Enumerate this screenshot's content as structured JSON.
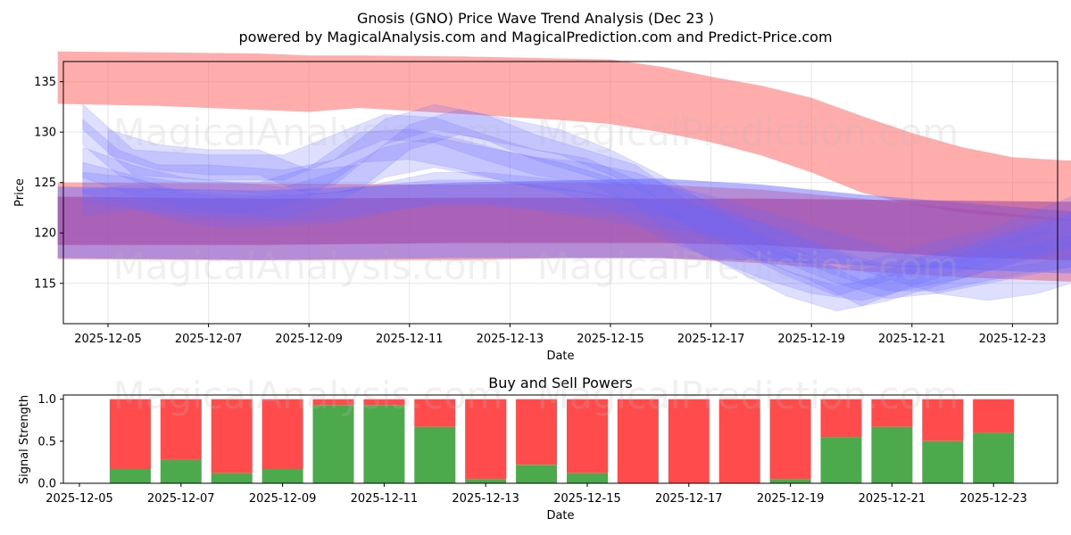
{
  "title": "Gnosis (GNO) Price Wave Trend Analysis (Dec 23 )",
  "subtitle": "powered by MagicalAnalysis.com and MagicalPrediction.com and Predict-Price.com",
  "watermarks": [
    "MagicalAnalysis.com",
    "MagicalPrediction.com"
  ],
  "colors": {
    "red_band": "#ff5a5a",
    "blue_band": "#6b6bff",
    "purple_band": "#a040a0",
    "buy": "#4caa4c",
    "sell": "#ff4b4b"
  },
  "chart_data": [
    {
      "type": "area",
      "name": "price-wave-chart",
      "xlabel": "Date",
      "ylabel": "Price",
      "xlim": [
        "2025-12-04",
        "2025-12-24"
      ],
      "ylim": [
        111,
        137
      ],
      "x_tick_labels": [
        "2025-12-05",
        "2025-12-07",
        "2025-12-09",
        "2025-12-11",
        "2025-12-13",
        "2025-12-15",
        "2025-12-17",
        "2025-12-19",
        "2025-12-21",
        "2025-12-23"
      ],
      "y_ticks": [
        115,
        120,
        125,
        130,
        135
      ],
      "grid": true,
      "bands": [
        {
          "name": "red-upper-band",
          "color": "red",
          "x": [
            0,
            2,
            4,
            5,
            6,
            8,
            10,
            11,
            12,
            13,
            14,
            15,
            16,
            17,
            18,
            19,
            20,
            21,
            22,
            23.5
          ],
          "lower": [
            132.8,
            132.6,
            132.2,
            132.0,
            132.4,
            131.8,
            131.2,
            130.8,
            130.0,
            129.0,
            127.7,
            126.0,
            124.0,
            122.8,
            122.0,
            121.6,
            121.2,
            121.0,
            120.8,
            120.6
          ],
          "upper": [
            138.0,
            137.9,
            137.8,
            137.6,
            137.6,
            137.5,
            137.3,
            137.2,
            136.5,
            135.5,
            134.6,
            133.4,
            131.6,
            129.9,
            128.5,
            127.5,
            127.2,
            127.1,
            127.0,
            127.0
          ]
        },
        {
          "name": "red-lower-band",
          "color": "red",
          "x": [
            0,
            4,
            8,
            10,
            12,
            14,
            16,
            18,
            20,
            22,
            23.5
          ],
          "lower": [
            117.4,
            117.3,
            117.3,
            117.5,
            117.5,
            117.0,
            116.2,
            115.6,
            115.2,
            114.8,
            114.4
          ],
          "upper": [
            125.0,
            124.9,
            124.8,
            125.0,
            124.8,
            124.3,
            123.4,
            122.4,
            121.4,
            120.8,
            120.5
          ]
        },
        {
          "name": "blue-lower-band",
          "color": "blue",
          "x": [
            0,
            4,
            8,
            10,
            12,
            14,
            16,
            18,
            20,
            22,
            23.5
          ],
          "lower": [
            117.5,
            117.3,
            117.5,
            117.5,
            117.5,
            117.2,
            116.8,
            116.4,
            116.0,
            115.8,
            115.5
          ],
          "upper": [
            124.6,
            124.2,
            125.0,
            125.2,
            125.4,
            124.8,
            123.8,
            123.0,
            122.2,
            121.4,
            120.6
          ]
        },
        {
          "name": "purple-band",
          "color": "purple",
          "x": [
            0,
            4,
            8,
            10,
            12,
            14,
            16,
            18,
            20,
            22,
            23.5
          ],
          "lower": [
            118.8,
            118.8,
            119.0,
            119.0,
            119.0,
            118.8,
            118.2,
            117.6,
            117.3,
            117.1,
            117.1
          ],
          "upper": [
            123.6,
            123.4,
            123.5,
            123.5,
            123.4,
            123.4,
            123.3,
            123.2,
            123.1,
            123.1,
            123.1
          ]
        }
      ],
      "waves": [
        {
          "x": [
            0.5,
            1.5,
            2.5,
            4,
            5,
            6,
            7,
            8,
            9,
            10,
            11,
            12,
            13,
            14,
            15,
            16,
            17,
            18,
            19,
            20,
            21,
            22,
            23
          ],
          "y": [
            125.5,
            124.2,
            123.5,
            123.5,
            125.0,
            128.5,
            128.8,
            127.8,
            126.5,
            125.5,
            124.0,
            121.0,
            119.0,
            117.0,
            115.5,
            114.8,
            116.0,
            117.0,
            118.5,
            120.0,
            121.5,
            122.5,
            120.0
          ],
          "w": 3.0
        },
        {
          "x": [
            0.5,
            1.5,
            3,
            4.5,
            5.5,
            6.5,
            7.5,
            8.5,
            9.5,
            10.5,
            11.5,
            12.5,
            13.5,
            14.5,
            15.5,
            16.5,
            17.5,
            18.5,
            19.5,
            20.5,
            21.5,
            22.5,
            23
          ],
          "y": [
            131.5,
            127.0,
            126.5,
            126.5,
            128.5,
            130.5,
            130.2,
            128.5,
            127.0,
            126.2,
            124.0,
            120.0,
            117.5,
            115.0,
            113.5,
            114.5,
            116.0,
            117.5,
            118.8,
            120.0,
            120.5,
            121.0,
            121.0
          ],
          "w": 2.5
        },
        {
          "x": [
            0.5,
            1.2,
            2.0,
            3.0,
            4.5,
            5.5,
            6.5,
            7.5,
            8.5,
            9.5,
            10.5,
            11.5,
            12.5,
            13.5,
            14.5,
            15.5,
            16.5,
            17.5,
            18.5,
            19.5,
            20.5,
            21.5,
            22.5,
            23.5
          ],
          "y": [
            130.0,
            127.0,
            125.5,
            125.5,
            125.0,
            126.0,
            130.0,
            131.5,
            130.5,
            128.5,
            127.0,
            125.5,
            122.0,
            119.5,
            117.0,
            115.0,
            116.5,
            118.0,
            119.0,
            121.0,
            123.0,
            124.0,
            123.0,
            122.0
          ],
          "w": 2.5
        },
        {
          "x": [
            0.5,
            1.5,
            2.5,
            3.5,
            4.5,
            5.5,
            6.5,
            7.5,
            8.5,
            9.5,
            10.5,
            11.5,
            12.5,
            13.5,
            14.5,
            15.5,
            16.5,
            17.5,
            18.5,
            19.5,
            20.5,
            21.5,
            22.5,
            23.5
          ],
          "y": [
            127.0,
            125.2,
            124.0,
            123.5,
            123.0,
            124.5,
            127.0,
            128.0,
            127.0,
            126.0,
            125.5,
            124.5,
            122.5,
            120.5,
            118.5,
            116.5,
            115.0,
            115.5,
            116.5,
            117.5,
            118.5,
            119.5,
            120.0,
            119.5
          ],
          "w": 3.0
        },
        {
          "x": [
            0.5,
            1.5,
            2.5,
            3.5,
            4.5,
            5.5,
            6.5,
            7.5,
            8.5,
            9.5,
            10.5,
            11.5,
            12.5,
            13.5,
            14.5,
            15.5,
            16.5,
            17.5,
            18.5,
            19.5,
            20.5,
            21.5,
            22.5,
            23.5
          ],
          "y": [
            124.5,
            124.0,
            122.5,
            122.0,
            122.2,
            122.5,
            123.5,
            124.5,
            124.5,
            124.0,
            123.5,
            123.5,
            122.8,
            121.5,
            120.0,
            118.5,
            117.0,
            115.5,
            114.8,
            115.5,
            117.0,
            118.0,
            118.5,
            119.0
          ],
          "w": 3.0
        },
        {
          "x": [
            1.0,
            2.0,
            3.0,
            4.0,
            5.0,
            6.0,
            7.0,
            8.0,
            9.0,
            10.0,
            11.0,
            12.0,
            13.0,
            14.0,
            15.0,
            16.0,
            17.0,
            18.0,
            19.0,
            20.0,
            21.0,
            22.0,
            23.0
          ],
          "y": [
            129.0,
            127.5,
            127.0,
            127.0,
            125.0,
            125.5,
            129.5,
            131.0,
            130.0,
            129.0,
            127.0,
            124.5,
            121.5,
            118.5,
            116.5,
            114.0,
            116.0,
            117.5,
            119.0,
            120.5,
            122.0,
            124.0,
            125.0
          ],
          "w": 2.5
        },
        {
          "x": [
            0.5,
            1.5,
            2.5,
            3.5,
            4.5,
            5.5,
            6.5,
            7.5,
            8.5,
            9.5,
            10.5,
            11.5,
            12.5,
            13.5,
            14.5,
            15.5,
            16.5,
            17.5,
            18.5,
            19.5,
            20.5,
            21.5,
            22.5,
            23.5
          ],
          "y": [
            123.0,
            123.5,
            123.0,
            122.5,
            122.5,
            122.8,
            123.5,
            124.0,
            124.0,
            123.5,
            122.8,
            122.0,
            121.5,
            120.5,
            119.0,
            117.0,
            115.5,
            115.5,
            116.5,
            117.5,
            118.0,
            118.5,
            118.5,
            119.0
          ],
          "w": 2.5
        }
      ]
    },
    {
      "type": "bar",
      "name": "buy-sell-powers",
      "title": "Buy and Sell Powers",
      "xlabel": "Date",
      "ylabel": "Signal Strength",
      "xlim": [
        "2025-12-04.9",
        "2025-12-24.6"
      ],
      "ylim": [
        0,
        1.05
      ],
      "x_tick_labels": [
        "2025-12-05",
        "2025-12-07",
        "2025-12-09",
        "2025-12-11",
        "2025-12-13",
        "2025-12-15",
        "2025-12-17",
        "2025-12-19",
        "2025-12-21",
        "2025-12-23"
      ],
      "y_tick_labels": [
        "0.0",
        "0.5",
        "1.0"
      ],
      "categories": [
        "2025-12-06",
        "2025-12-07",
        "2025-12-08",
        "2025-12-09",
        "2025-12-10",
        "2025-12-11",
        "2025-12-12",
        "2025-12-13",
        "2025-12-14",
        "2025-12-15",
        "2025-12-16",
        "2025-12-17",
        "2025-12-18",
        "2025-12-19",
        "2025-12-20",
        "2025-12-21",
        "2025-12-22",
        "2025-12-23"
      ],
      "series": [
        {
          "name": "Buy",
          "values": [
            0.17,
            0.28,
            0.12,
            0.17,
            0.93,
            0.93,
            0.67,
            0.05,
            0.22,
            0.12,
            0.0,
            0.0,
            0.0,
            0.05,
            0.55,
            0.67,
            0.5,
            0.6
          ]
        },
        {
          "name": "Sell",
          "values": [
            0.83,
            0.72,
            0.88,
            0.83,
            0.07,
            0.07,
            0.33,
            0.95,
            0.78,
            0.88,
            1.0,
            1.0,
            1.0,
            0.95,
            0.45,
            0.33,
            0.5,
            0.4
          ]
        }
      ]
    }
  ]
}
